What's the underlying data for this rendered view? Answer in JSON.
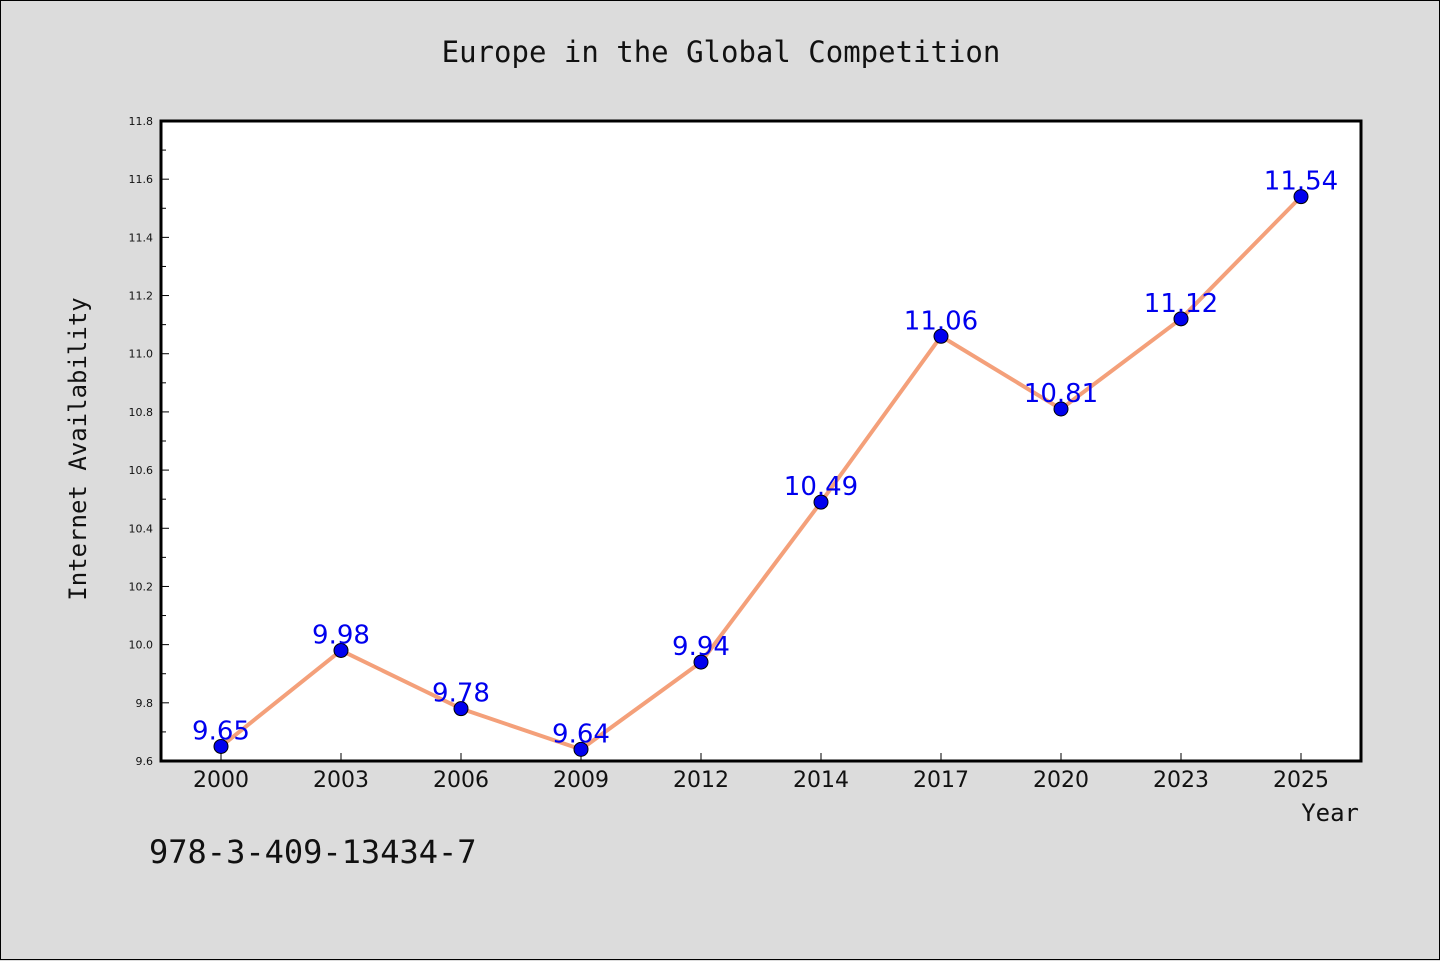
{
  "chart_data": {
    "type": "line",
    "title": "Europe in the Global Competition",
    "xlabel": "Year",
    "ylabel": "Internet Availability",
    "x": [
      "2000",
      "2003",
      "2006",
      "2009",
      "2012",
      "2014",
      "2017",
      "2020",
      "2023",
      "2025"
    ],
    "values": [
      9.65,
      9.98,
      9.78,
      9.64,
      9.94,
      10.49,
      11.06,
      10.81,
      11.12,
      11.54
    ],
    "data_labels": [
      "9.65",
      "9.98",
      "9.78",
      "9.64",
      "9.94",
      "10.49",
      "11.06",
      "10.81",
      "11.12",
      "11.54"
    ],
    "ylim": [
      9.6,
      11.8
    ],
    "yticks": [
      "9.6",
      "9.8",
      "10.0",
      "10.2",
      "10.4",
      "10.6",
      "10.8",
      "11.0",
      "11.2",
      "11.4",
      "11.6",
      "11.8"
    ],
    "grid": false,
    "line_color": "#f4a07a",
    "marker_color": "#0000ee",
    "label_color": "#0000ee"
  },
  "annotation": "978-3-409-13434-7"
}
